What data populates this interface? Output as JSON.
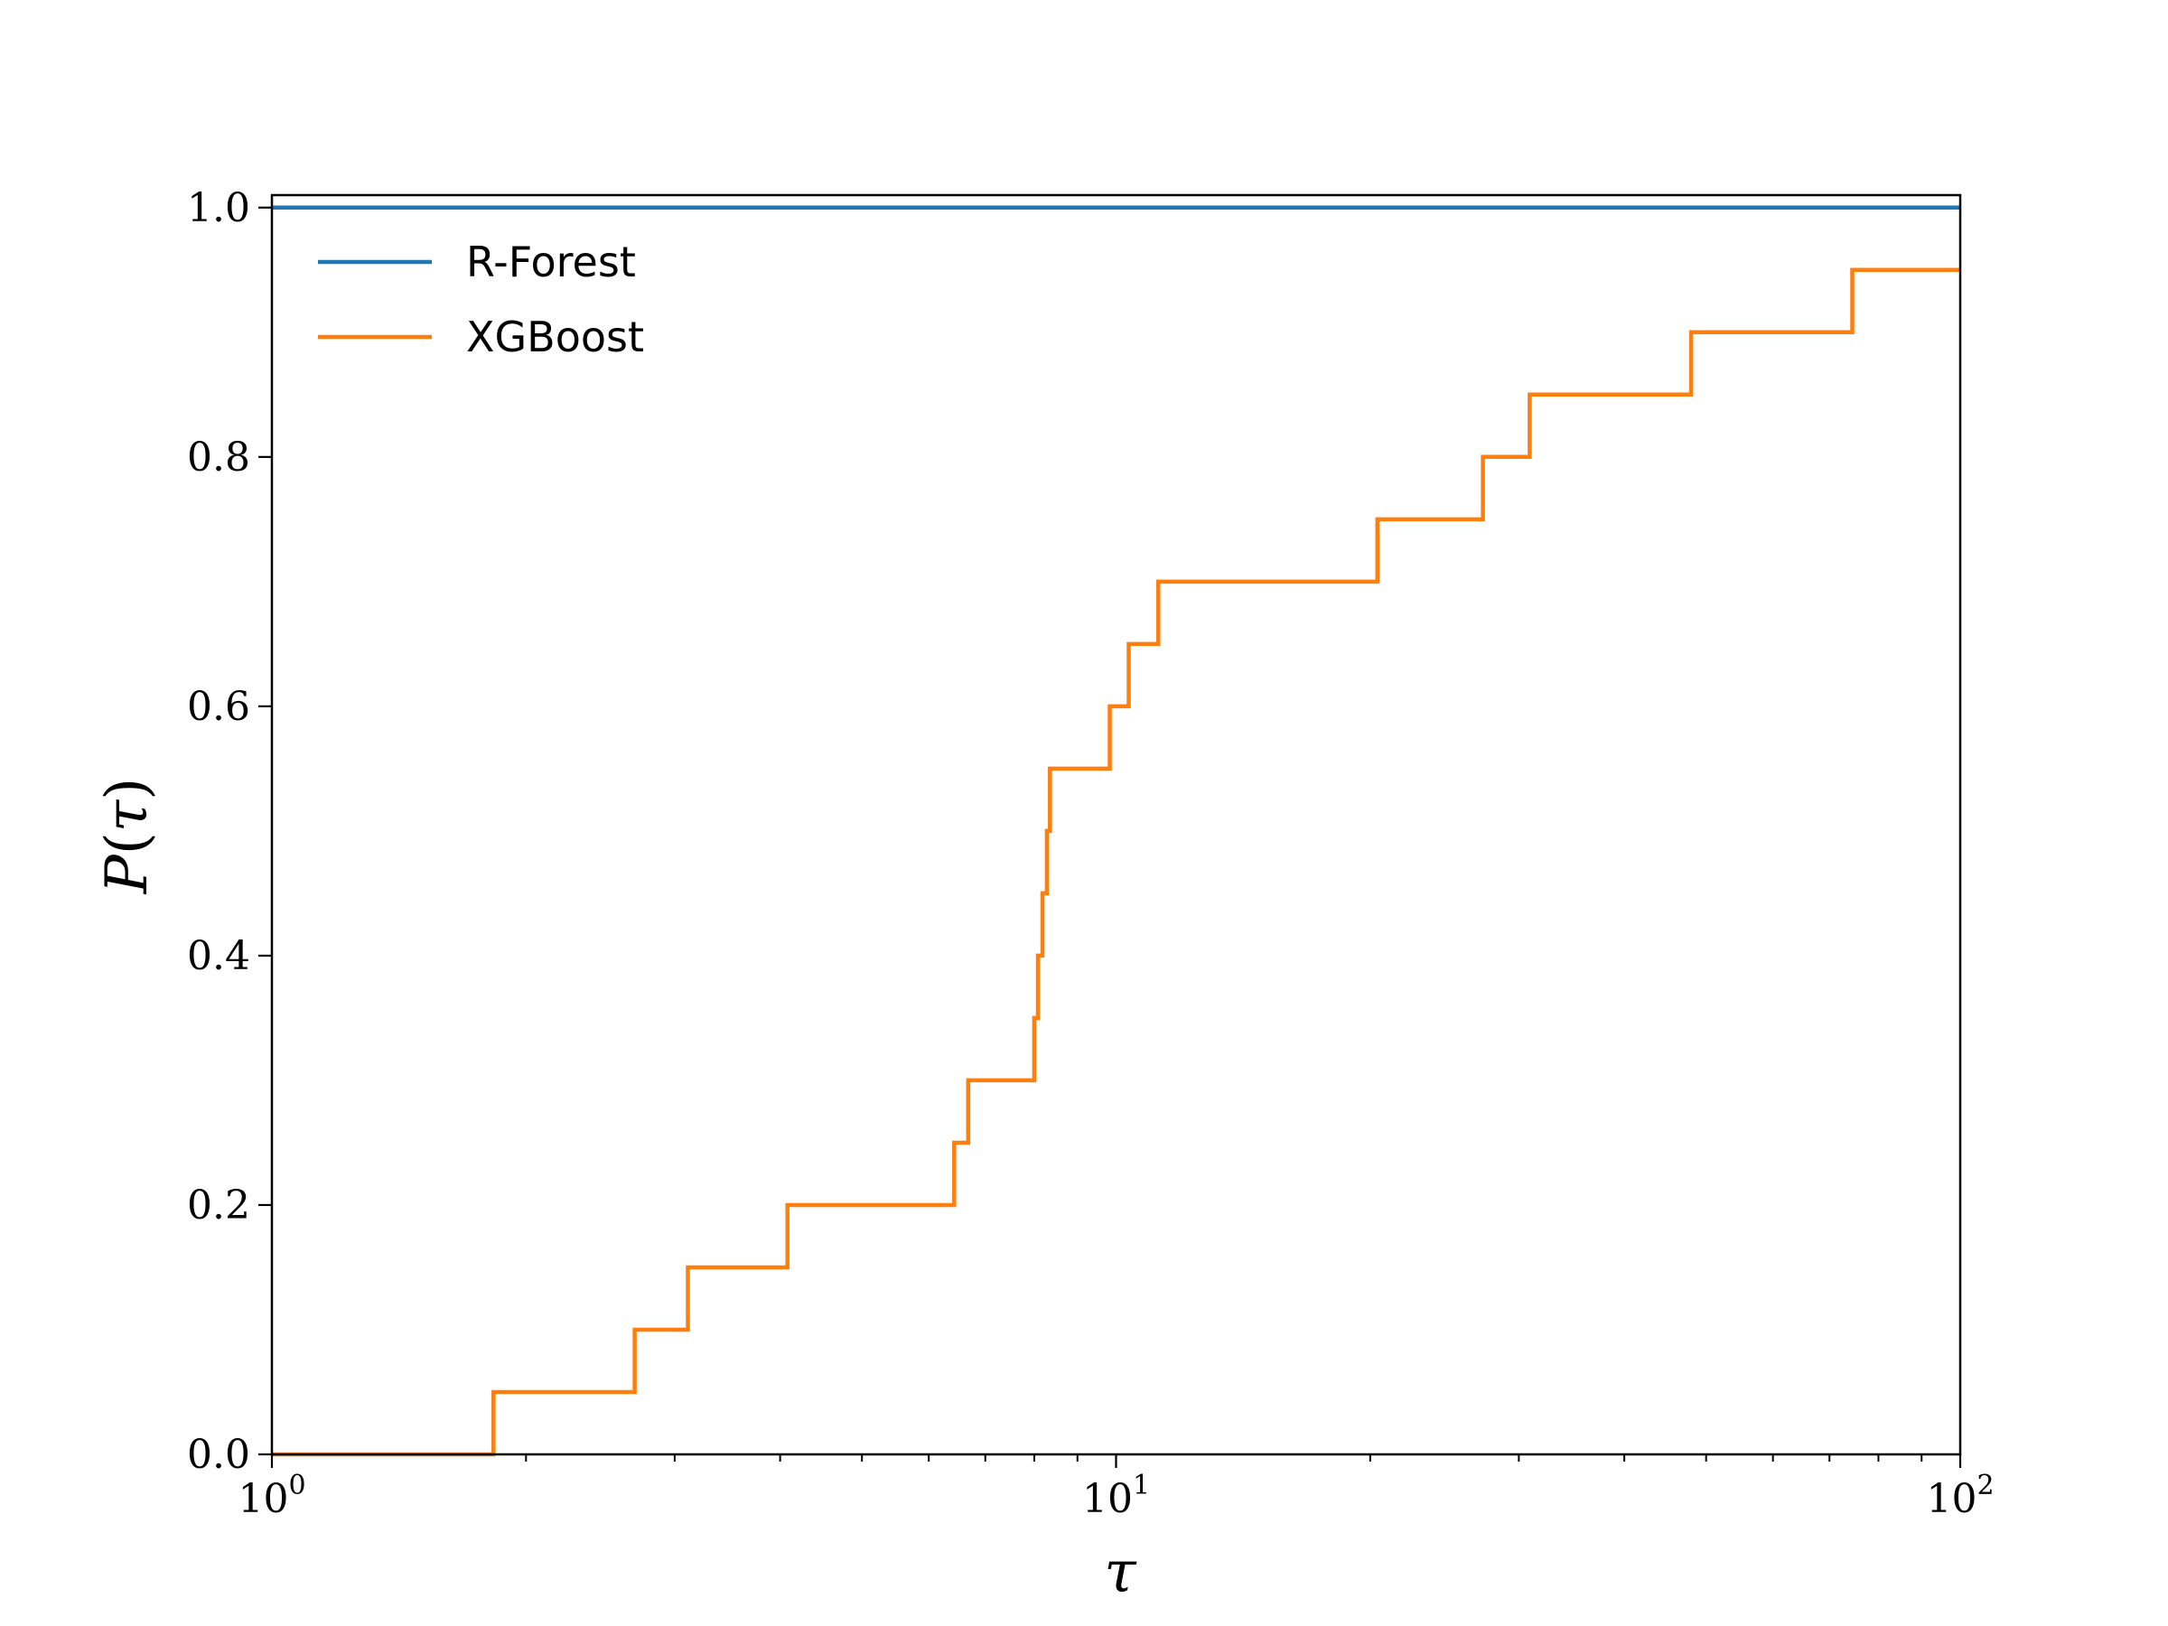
{
  "chart_data": {
    "type": "line",
    "step": "post",
    "xscale": "log",
    "xlim": [
      1,
      100
    ],
    "ylim": [
      0,
      1.0
    ],
    "xlabel": "τ",
    "ylabel_main": "P",
    "ylabel_arg": "τ",
    "legend_placement": "upper-left",
    "grid": false,
    "x_ticks": [
      {
        "value": 1,
        "base": "10",
        "exp": "0"
      },
      {
        "value": 10,
        "base": "10",
        "exp": "1"
      },
      {
        "value": 100,
        "base": "10",
        "exp": "2"
      }
    ],
    "y_ticks": [
      {
        "value": 0.0,
        "label": "0.0"
      },
      {
        "value": 0.2,
        "label": "0.2"
      },
      {
        "value": 0.4,
        "label": "0.4"
      },
      {
        "value": 0.6,
        "label": "0.6"
      },
      {
        "value": 0.8,
        "label": "0.8"
      },
      {
        "value": 1.0,
        "label": "1.0"
      }
    ],
    "series": [
      {
        "name": "R-Forest",
        "color": "#1f77b4",
        "x": [
          1,
          100
        ],
        "y": [
          1.0,
          1.0
        ]
      },
      {
        "name": "XGBoost",
        "color": "#ff7f0e",
        "x": [
          1,
          1.83,
          2.69,
          3.11,
          4.08,
          6.43,
          6.68,
          8.0,
          8.08,
          8.18,
          8.28,
          8.35,
          9.83,
          10.35,
          11.22,
          20.4,
          27.2,
          30.9,
          48.0,
          74.5,
          100
        ],
        "y": [
          0.0,
          0.05,
          0.1,
          0.15,
          0.2,
          0.25,
          0.3,
          0.35,
          0.4,
          0.45,
          0.5,
          0.55,
          0.6,
          0.65,
          0.7,
          0.75,
          0.8,
          0.85,
          0.9,
          0.95,
          0.95
        ]
      }
    ]
  }
}
